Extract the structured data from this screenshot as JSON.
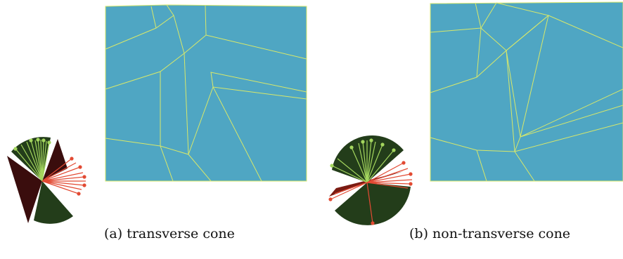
{
  "figure": {
    "subfigures": [
      {
        "id": "a",
        "caption": "(a) transverse cone"
      },
      {
        "id": "b",
        "caption": "(b) non-transverse cone"
      }
    ],
    "colors": {
      "mesh_fill": "#4fa6c3",
      "mesh_edge": "#d8e86a",
      "cone_green": "#233d1a",
      "cone_dark_red": "#3a0d0d",
      "arrow_green": "#a4d65e",
      "arrow_red": "#e24a33"
    }
  }
}
